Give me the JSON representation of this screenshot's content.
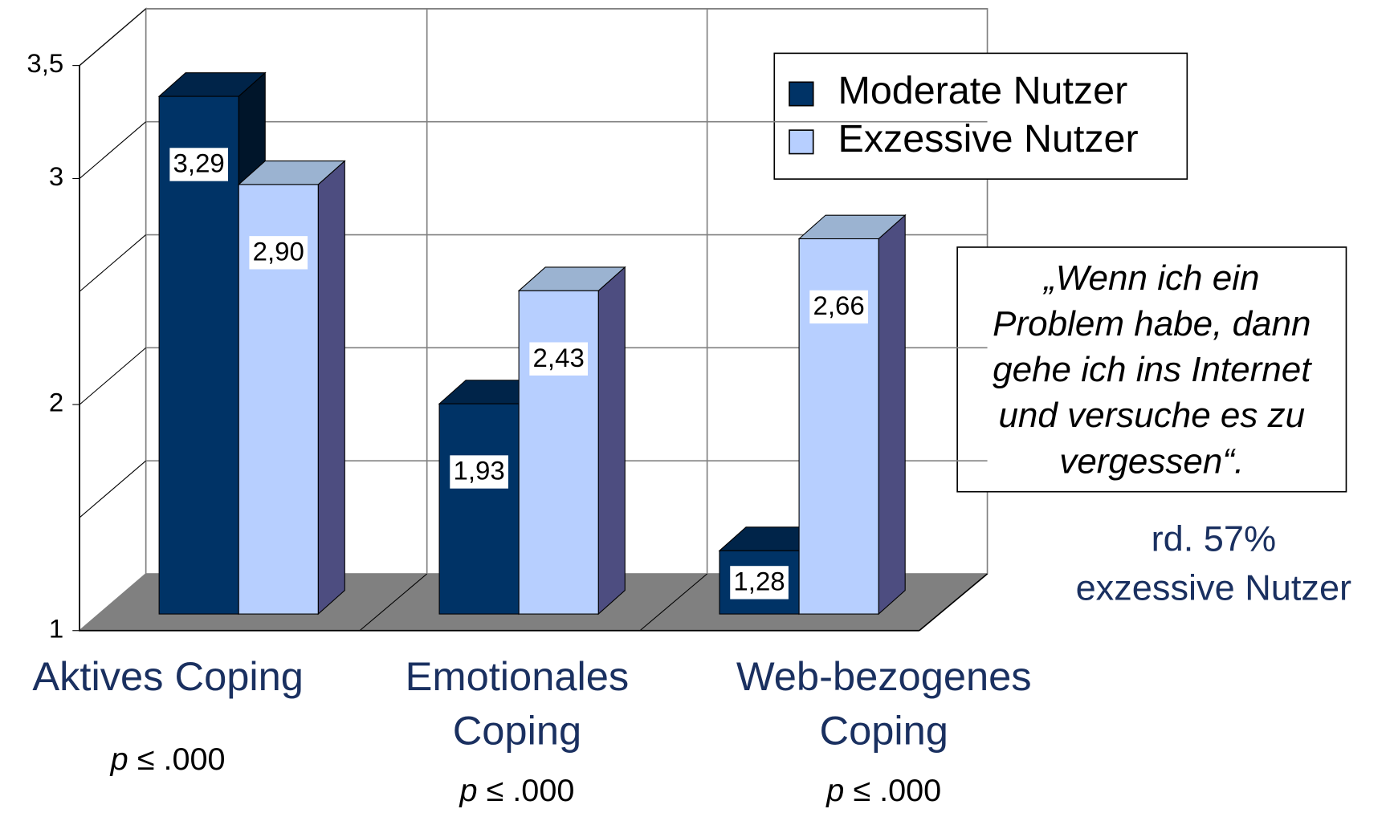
{
  "chart_data": {
    "type": "bar3d",
    "categories": [
      [
        "Aktives Coping"
      ],
      [
        "Emotionales",
        "Coping"
      ],
      [
        "Web-bezogenes",
        "Coping"
      ]
    ],
    "series": [
      {
        "name": "Moderate Nutzer",
        "color": "#003366",
        "values": [
          3.29,
          1.93,
          1.28
        ],
        "value_labels": [
          "3,29",
          "1,93",
          "1,28"
        ]
      },
      {
        "name": "Exzessive Nutzer",
        "color": "#b7cfff",
        "values": [
          2.9,
          2.43,
          2.66
        ],
        "value_labels": [
          "2,90",
          "2,43",
          "2,66"
        ]
      }
    ],
    "ylim": [
      1,
      3.5
    ],
    "yticks": [
      1,
      2,
      3,
      {
        "value": 3.5,
        "label": "3,5"
      }
    ],
    "minor_grid": [
      1.5,
      2.5
    ],
    "grid": true,
    "legend": "upper right",
    "p_values": [
      "p ≤ .000",
      "p ≤ .000",
      "p ≤ .000"
    ],
    "quote": [
      "„Wenn ich ein",
      "Problem habe, dann",
      "gehe ich ins Internet",
      "und versuche es zu",
      "vergessen“."
    ],
    "note": [
      "rd. 57%",
      "exzessive Nutzer"
    ]
  }
}
